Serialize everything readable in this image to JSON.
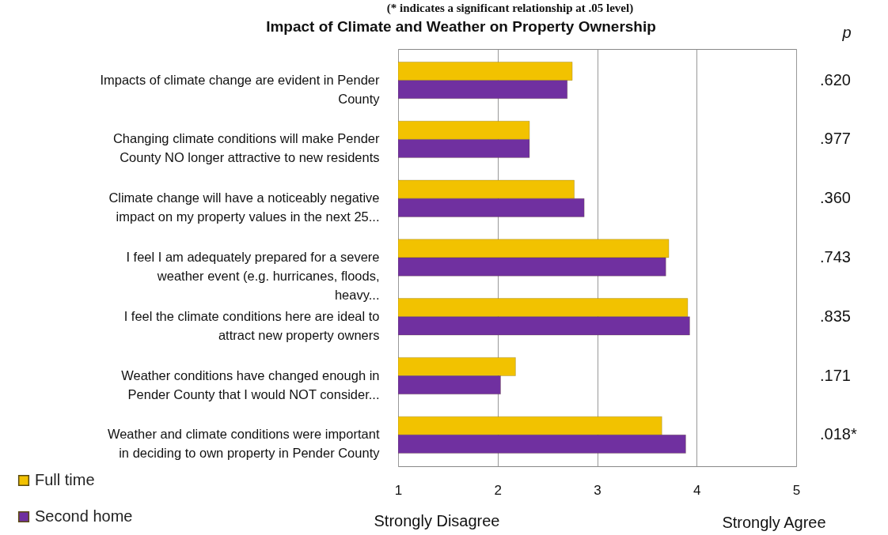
{
  "chart_data": {
    "type": "bar",
    "orientation": "horizontal",
    "title": "Impact of Climate and Weather on Property Ownership",
    "categories": [
      "Impacts of climate change are evident in Pender County",
      "Changing climate conditions will make Pender County NO longer attractive to new residents",
      "Climate change will have a noticeably negative impact on my property values in the next 25...",
      "I feel I am adequately prepared for a severe weather event (e.g. hurricanes, floods, heavy...",
      "I feel the climate conditions here are ideal to attract new property owners",
      "Weather conditions have changed enough in Pender County that I would NOT consider...",
      "Weather and climate conditions were important in deciding to own property in Pender County"
    ],
    "series": [
      {
        "name": "Full time",
        "color": "#f2c200",
        "values": [
          2.75,
          2.32,
          2.77,
          3.72,
          3.91,
          2.18,
          3.65
        ]
      },
      {
        "name": "Second home",
        "color": "#7030a0",
        "values": [
          2.7,
          2.32,
          2.87,
          3.69,
          3.93,
          2.03,
          3.89
        ]
      }
    ],
    "xlim": [
      1,
      5
    ],
    "xticks": [
      1,
      2,
      3,
      4,
      5
    ],
    "grid": "x",
    "legend": "bottom left",
    "annotations": [
      "(* indicates a significant relationship at .05 level)",
      "p",
      ".620",
      ".977",
      ".360",
      ".743",
      ".835",
      ".171",
      ".018*",
      "Strongly Disagree",
      "Strongly Agree"
    ]
  }
}
